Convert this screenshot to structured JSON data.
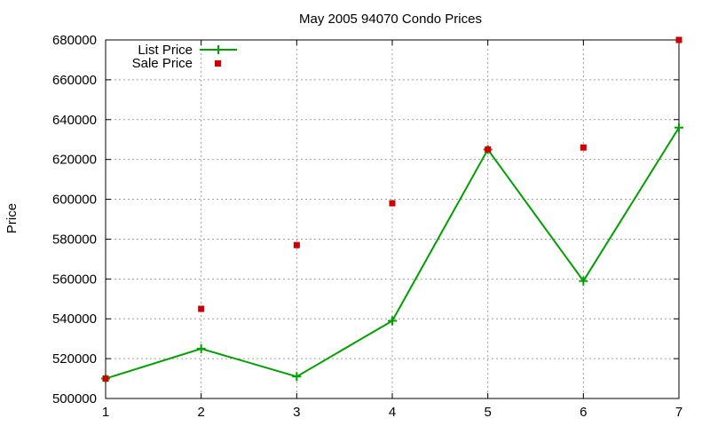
{
  "chart_data": {
    "type": "line",
    "title": "May 2005 94070 Condo Prices",
    "xlabel": "",
    "ylabel": "Price",
    "x": [
      1,
      2,
      3,
      4,
      5,
      6,
      7
    ],
    "xlim": [
      1,
      7
    ],
    "ylim": [
      500000,
      680000
    ],
    "xticks": [
      "1",
      "2",
      "3",
      "4",
      "5",
      "6",
      "7"
    ],
    "yticks": [
      "500000",
      "520000",
      "540000",
      "560000",
      "580000",
      "600000",
      "620000",
      "640000",
      "660000",
      "680000"
    ],
    "grid": true,
    "legend_position": "top-left",
    "series": [
      {
        "name": "List Price",
        "style": "line+points",
        "color": "#00a000",
        "values": [
          510000,
          525000,
          511000,
          539000,
          625000,
          559000,
          636000
        ]
      },
      {
        "name": "Sale Price",
        "style": "points",
        "color": "#cc0000",
        "values": [
          510000,
          545000,
          577000,
          598000,
          625000,
          626000,
          680000
        ]
      }
    ]
  }
}
